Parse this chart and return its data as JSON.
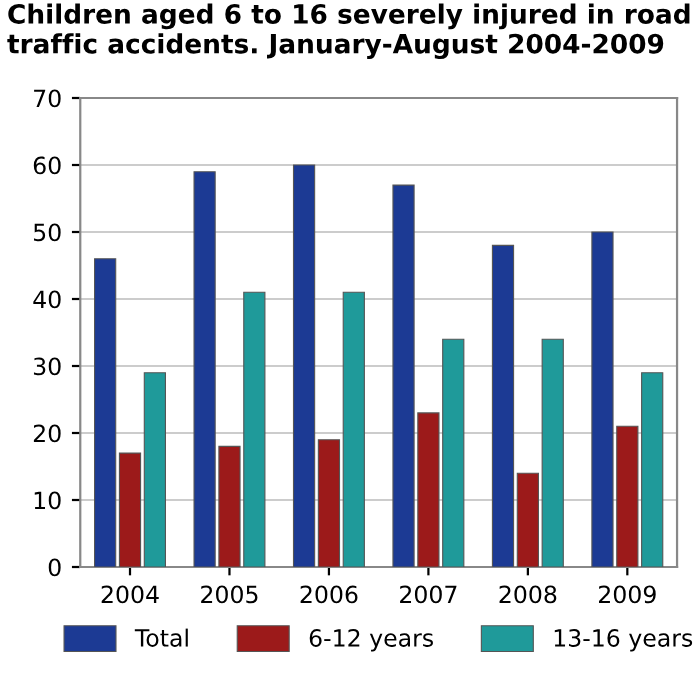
{
  "chart_data": {
    "type": "bar",
    "title": "Children aged 6 to 16 severely injured in road traffic accidents. January-August 2004-2009",
    "categories": [
      "2004",
      "2005",
      "2006",
      "2007",
      "2008",
      "2009"
    ],
    "series": [
      {
        "name": "Total",
        "color": "#1c3a94",
        "values": [
          46,
          59,
          60,
          57,
          48,
          50
        ]
      },
      {
        "name": "6-12 years",
        "color": "#9c1a1a",
        "values": [
          17,
          18,
          19,
          23,
          14,
          21
        ]
      },
      {
        "name": "13-16 years",
        "color": "#1f9a9a",
        "values": [
          29,
          41,
          41,
          34,
          34,
          29
        ]
      }
    ],
    "ylim": [
      0,
      70
    ],
    "yticks": [
      0,
      10,
      20,
      30,
      40,
      50,
      60,
      70
    ],
    "grid": "y",
    "legend": "bottom"
  }
}
